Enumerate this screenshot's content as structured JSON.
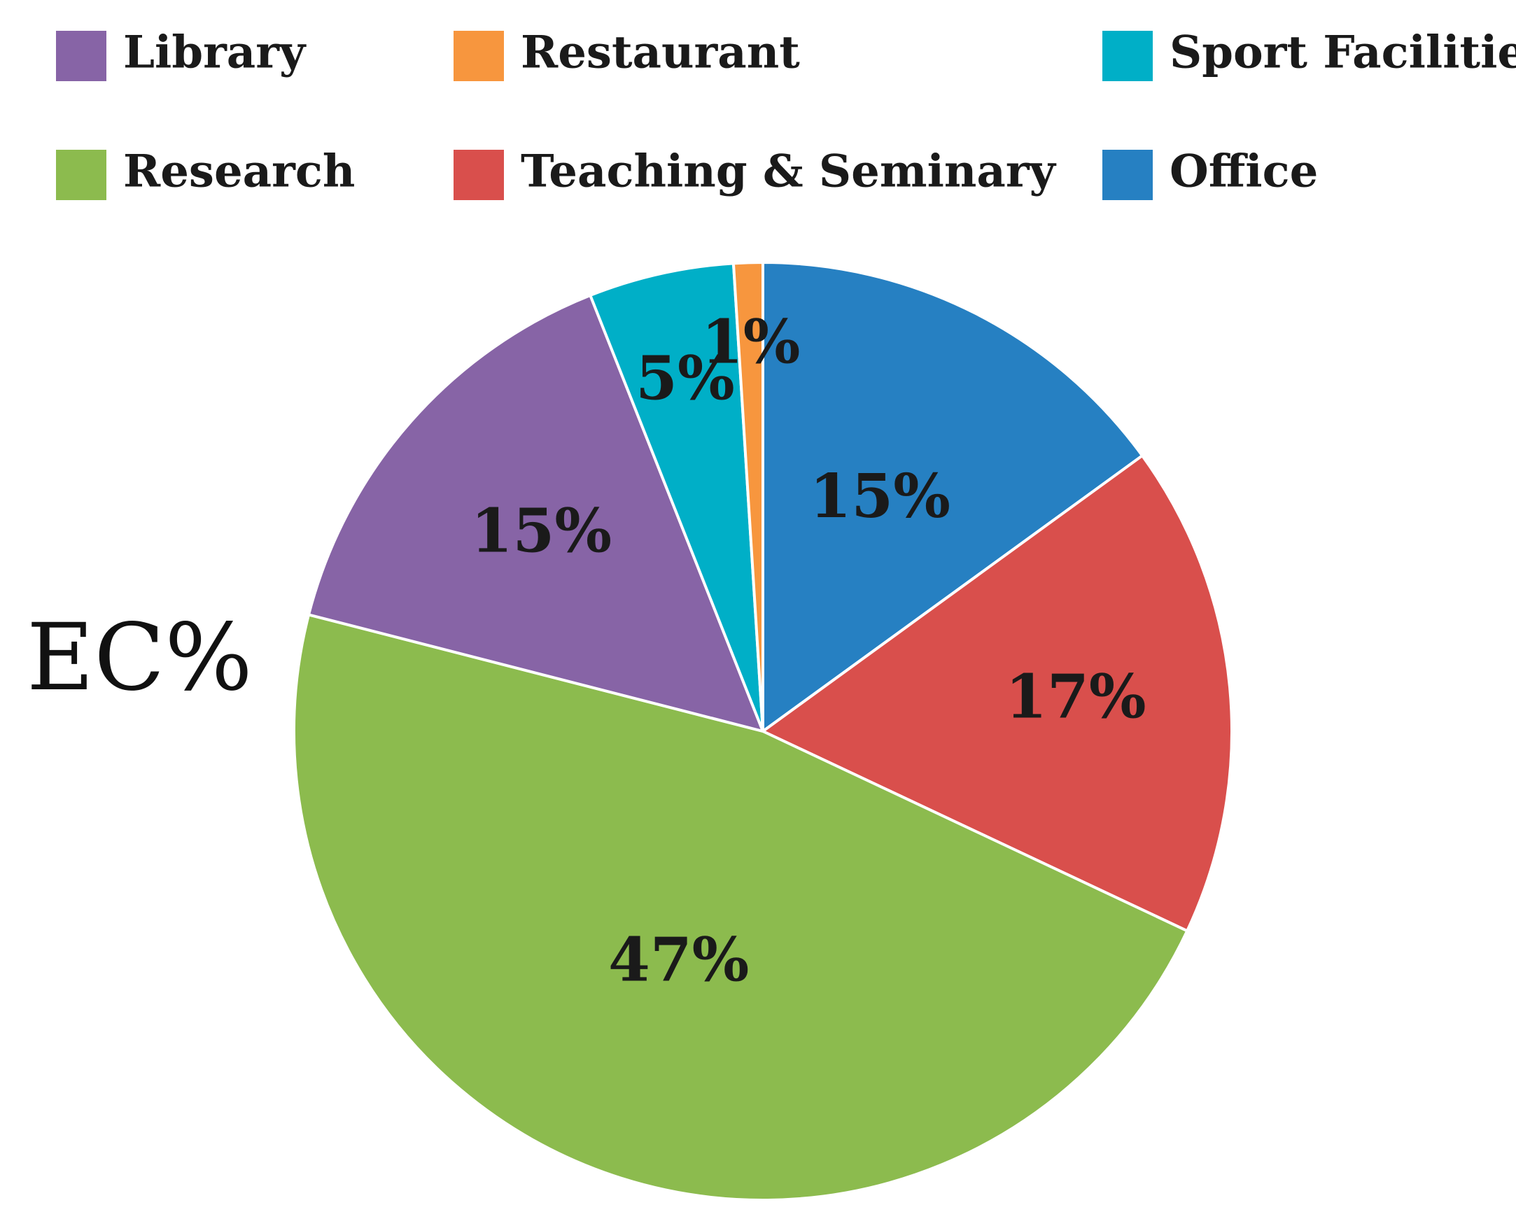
{
  "chart_data": {
    "type": "pie",
    "title": "EC%",
    "legend_placement": "top",
    "slices": [
      {
        "label": "Office",
        "value": 15,
        "value_label": "15%",
        "color": "#2680C2"
      },
      {
        "label": "Teaching & Seminary",
        "value": 17,
        "value_label": "17%",
        "color": "#D94F4C"
      },
      {
        "label": "Research",
        "value": 47,
        "value_label": "47%",
        "color": "#8CBB4E"
      },
      {
        "label": "Library",
        "value": 15,
        "value_label": "15%",
        "color": "#8764A6"
      },
      {
        "label": "Sport Facilities",
        "value": 5,
        "value_label": "5%",
        "color": "#00AFC7"
      },
      {
        "label": "Restaurant",
        "value": 1,
        "value_label": "1%",
        "color": "#F7963E"
      }
    ],
    "legend_order": [
      "Library",
      "Restaurant",
      "Sport Facilities",
      "Research",
      "Teaching & Seminary",
      "Office"
    ]
  }
}
